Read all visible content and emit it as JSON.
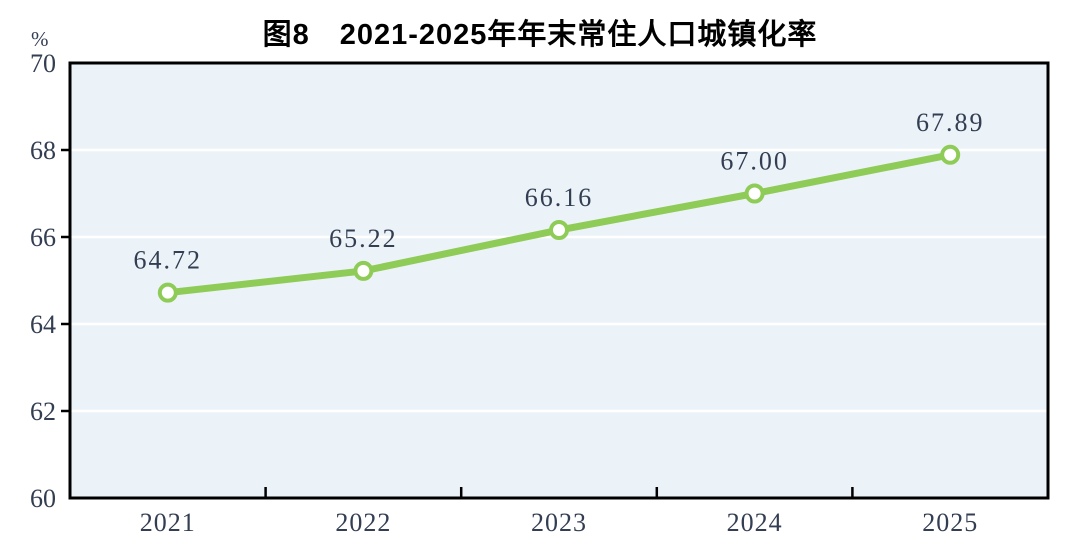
{
  "figure": {
    "title": "图8　2021-2025年年末常住人口城镇化率",
    "y_unit_label": "%"
  },
  "chart_data": {
    "type": "line",
    "title": "图8　2021-2025年年末常住人口城镇化率",
    "xlabel": "",
    "ylabel": "%",
    "categories": [
      "2021",
      "2022",
      "2023",
      "2024",
      "2025"
    ],
    "values": [
      64.72,
      65.22,
      66.16,
      67.0,
      67.89
    ],
    "data_labels": [
      "64.72",
      "65.22",
      "66.16",
      "67.00",
      "67.89"
    ],
    "ylim": [
      60,
      70
    ],
    "y_ticks": [
      60,
      62,
      64,
      66,
      68,
      70
    ],
    "grid": true,
    "legend": false,
    "marker": "open-circle",
    "colors": {
      "line": "#8fcb57",
      "marker_fill": "#ffffff",
      "plot_bg": "#ebf3f8",
      "grid": "#ffffff",
      "axis": "#000000",
      "tick_label_text": "#333e52",
      "value_label_text": "#333e52",
      "title_text": "#000000"
    }
  }
}
